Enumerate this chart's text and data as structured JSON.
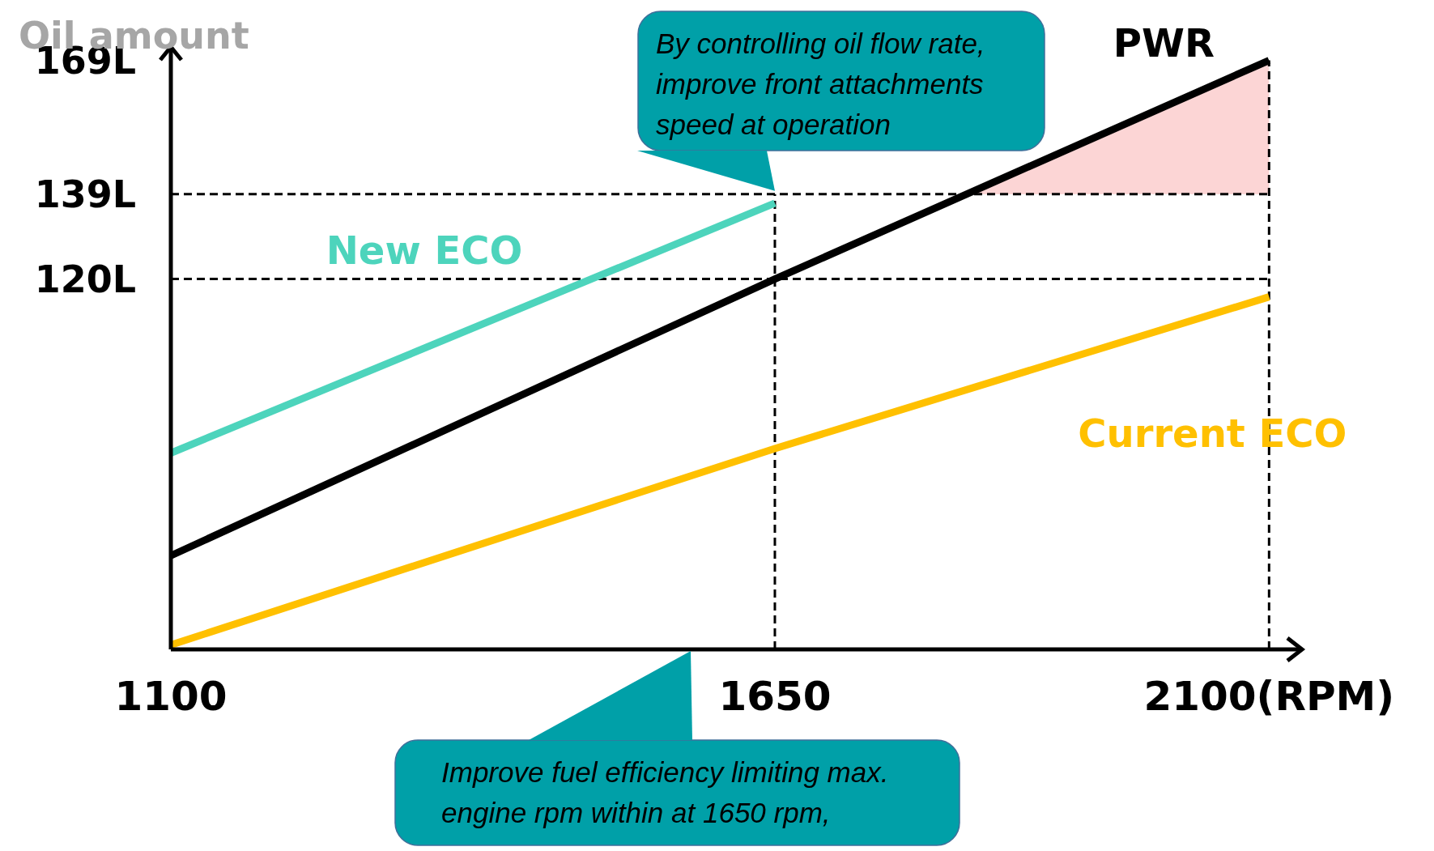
{
  "chart_data": {
    "type": "line",
    "ylabel": "Oil amount",
    "xlim": [
      1100,
      2130
    ],
    "xticks": [
      1100,
      1650,
      {
        "value": 2100,
        "label": "2100(RPM)"
      }
    ],
    "ylim": [
      37,
      172
    ],
    "yticks": [
      {
        "value": 169,
        "label": "169L"
      },
      {
        "value": 139,
        "label": "139L"
      },
      {
        "value": 120,
        "label": "120L"
      }
    ],
    "series": [
      {
        "name": "New ECO",
        "color": "#4dd4bc",
        "x": [
          1100,
          1650
        ],
        "values": [
          81,
          137
        ]
      },
      {
        "name": "PWR",
        "color": "#000000",
        "x": [
          1100,
          1650,
          2100
        ],
        "values": [
          58,
          120,
          169
        ]
      },
      {
        "name": "Current ECO",
        "color": "#ffc000",
        "x": [
          1100,
          1650,
          2100
        ],
        "values": [
          38,
          82,
          116
        ]
      }
    ],
    "ref_lines": [
      {
        "axis": "y",
        "value": 139,
        "line_style": "dashed"
      },
      {
        "axis": "y",
        "value": 120,
        "line_style": "dashed"
      },
      {
        "axis": "x",
        "value": 1650,
        "line_style": "dashed"
      },
      {
        "axis": "x",
        "value": 2100,
        "line_style": "dashed"
      }
    ],
    "bands": [
      {
        "axis": "y",
        "from": 139,
        "to": 169,
        "color": "#fcd5d5"
      }
    ],
    "annotations": [
      {
        "text": "By controlling oil flow rate, improve front attachments speed at operation",
        "x": 1650,
        "y": 139
      },
      "Improve fuel efficiency limiting max. engine rpm within at 1650 rpm,"
    ],
    "grid": false,
    "legend": false,
    "marker": "none",
    "line_style": "solid"
  }
}
